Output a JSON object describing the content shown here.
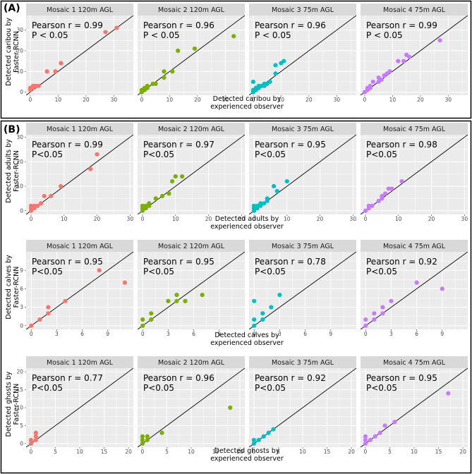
{
  "colors": {
    "panel_bg": "#ebebeb",
    "strip_bg": "#d9d9d9",
    "grid": "#ffffff",
    "mosaic1": "#f8766d",
    "mosaic2": "#7cae00",
    "mosaic3": "#00bfc4",
    "mosaic4": "#c77cff",
    "line": "#000000"
  },
  "part_labels": [
    "(A)",
    "(B)"
  ],
  "chart_data": [
    {
      "id": "caribou",
      "part": "(A)",
      "type": "scatter",
      "xlabel": [
        "Detected caribou by",
        "experienced observer"
      ],
      "ylabel": [
        "Detected caribou by",
        "Faster-RCNN"
      ],
      "xlim": [
        -1.5,
        37
      ],
      "ylim": [
        -1.5,
        37
      ],
      "xticks": [
        0,
        10,
        20,
        30
      ],
      "yticks": [
        0,
        10,
        20,
        30
      ],
      "panels": [
        {
          "title": "Mosaic 1 120m AGL",
          "annotation": "Pearson r = 0.99",
          "pvalue": "P < 0.05",
          "points": [
            [
              0,
              1
            ],
            [
              0,
              2
            ],
            [
              1,
              2
            ],
            [
              1,
              3
            ],
            [
              2,
              3
            ],
            [
              3,
              3
            ],
            [
              6,
              10
            ],
            [
              9,
              10
            ],
            [
              11,
              14
            ],
            [
              27,
              29
            ],
            [
              31,
              31
            ]
          ]
        },
        {
          "title": "Mosaic 2 120m AGL",
          "annotation": "Pearson r = 0.96",
          "pvalue": "P < 0.05",
          "points": [
            [
              0,
              0
            ],
            [
              0,
              1
            ],
            [
              1,
              1
            ],
            [
              1,
              2
            ],
            [
              2,
              2
            ],
            [
              2,
              3
            ],
            [
              4,
              4
            ],
            [
              5,
              4
            ],
            [
              8,
              7
            ],
            [
              8,
              10
            ],
            [
              11,
              10
            ],
            [
              13,
              20
            ],
            [
              19,
              21
            ],
            [
              33,
              27
            ]
          ]
        },
        {
          "title": "Mosaic 3 75m AGL",
          "annotation": "Pearson r = 0.96",
          "pvalue": "P < 0.05",
          "points": [
            [
              0,
              0
            ],
            [
              0,
              1
            ],
            [
              0,
              5
            ],
            [
              1,
              1
            ],
            [
              1,
              2
            ],
            [
              2,
              2
            ],
            [
              2,
              3
            ],
            [
              3,
              3
            ],
            [
              4,
              3
            ],
            [
              4,
              4
            ],
            [
              5,
              4
            ],
            [
              6,
              5
            ],
            [
              8,
              9
            ],
            [
              8,
              13
            ],
            [
              10,
              14
            ],
            [
              11,
              15
            ]
          ]
        },
        {
          "title": "Mosaic 4 75m AGL",
          "annotation": "Pearson r = 0.99",
          "pvalue": "P < 0.05",
          "points": [
            [
              0,
              0
            ],
            [
              1,
              1
            ],
            [
              1,
              2
            ],
            [
              2,
              2
            ],
            [
              2,
              3
            ],
            [
              3,
              5
            ],
            [
              5,
              5
            ],
            [
              5,
              7
            ],
            [
              6,
              6
            ],
            [
              7,
              8
            ],
            [
              8,
              9
            ],
            [
              9,
              10
            ],
            [
              12,
              15
            ],
            [
              14,
              15
            ],
            [
              15,
              18
            ],
            [
              16,
              17
            ],
            [
              27,
              25
            ]
          ]
        }
      ]
    },
    {
      "id": "adults",
      "part": "(B)",
      "type": "scatter",
      "xlabel": [
        "Detected adults by",
        "experienced observer"
      ],
      "ylabel": [
        "Detected adults by",
        "Faster-RCNN"
      ],
      "xlim": [
        -1.5,
        31
      ],
      "ylim": [
        -1.5,
        31
      ],
      "xticks": [
        0,
        10,
        20,
        30
      ],
      "yticks": [
        0,
        10,
        20,
        30
      ],
      "panels": [
        {
          "title": "Mosaic 1 120m AGL",
          "annotation": "Pearson r = 0.99",
          "pvalue": "P<0.05",
          "points": [
            [
              0,
              0
            ],
            [
              0,
              1
            ],
            [
              0,
              2
            ],
            [
              1,
              1
            ],
            [
              1,
              2
            ],
            [
              2,
              2
            ],
            [
              3,
              3
            ],
            [
              4,
              6
            ],
            [
              6,
              6
            ],
            [
              9,
              10
            ],
            [
              18,
              17
            ],
            [
              20,
              23
            ]
          ]
        },
        {
          "title": "Mosaic 2 120m AGL",
          "annotation": "Pearson r = 0.97",
          "pvalue": "P<0.05",
          "points": [
            [
              0,
              0
            ],
            [
              0,
              1
            ],
            [
              0,
              2
            ],
            [
              1,
              1
            ],
            [
              1,
              2
            ],
            [
              2,
              2
            ],
            [
              2,
              3
            ],
            [
              4,
              5
            ],
            [
              6,
              6
            ],
            [
              8,
              7
            ],
            [
              9,
              12
            ],
            [
              10,
              14
            ],
            [
              12,
              14
            ]
          ]
        },
        {
          "title": "Mosaic 3 75m AGL",
          "annotation": "Pearson r = 0.95",
          "pvalue": "P<0.05",
          "points": [
            [
              0,
              0
            ],
            [
              0,
              1
            ],
            [
              0,
              2
            ],
            [
              1,
              1
            ],
            [
              1,
              2
            ],
            [
              2,
              2
            ],
            [
              2,
              3
            ],
            [
              3,
              3
            ],
            [
              4,
              4
            ],
            [
              4,
              5
            ],
            [
              6,
              10
            ],
            [
              7,
              8
            ],
            [
              10,
              12
            ]
          ]
        },
        {
          "title": "Mosaic 4 75m AGL",
          "annotation": "Pearson r = 0.98",
          "pvalue": "P<0.05",
          "points": [
            [
              0,
              0
            ],
            [
              1,
              1
            ],
            [
              1,
              2
            ],
            [
              2,
              2
            ],
            [
              4,
              4
            ],
            [
              5,
              5
            ],
            [
              5,
              6
            ],
            [
              6,
              7
            ],
            [
              7,
              9
            ],
            [
              8,
              9
            ],
            [
              11,
              12
            ]
          ]
        }
      ]
    },
    {
      "id": "calves",
      "part": "(B)",
      "type": "scatter",
      "xlabel": [
        "Detected calves by",
        "experienced observer"
      ],
      "ylabel": [
        "Detected calves by",
        "Faster-RCNN"
      ],
      "xlim": [
        -0.6,
        12
      ],
      "ylim": [
        -0.6,
        12
      ],
      "xticks": [
        0,
        3,
        6,
        9
      ],
      "yticks": [
        0,
        3,
        6,
        9
      ],
      "panels": [
        {
          "title": "Mosaic 1 120m AGL",
          "annotation": "Pearson r = 0.95",
          "pvalue": "P<0.05",
          "points": [
            [
              0,
              0
            ],
            [
              1,
              1
            ],
            [
              2,
              2
            ],
            [
              2,
              3
            ],
            [
              4,
              4
            ],
            [
              8,
              9
            ],
            [
              11,
              7
            ]
          ]
        },
        {
          "title": "Mosaic 2 120m AGL",
          "annotation": "Pearson r = 0.95",
          "pvalue": "P<0.05",
          "points": [
            [
              0,
              0
            ],
            [
              0,
              1
            ],
            [
              1,
              1
            ],
            [
              1,
              2
            ],
            [
              3,
              4
            ],
            [
              4,
              4
            ],
            [
              4,
              5
            ],
            [
              5,
              4
            ],
            [
              7,
              5
            ]
          ]
        },
        {
          "title": "Mosaic 3 75m AGL",
          "annotation": "Pearson r = 0.78",
          "pvalue": "P<0.05",
          "points": [
            [
              0,
              0
            ],
            [
              0,
              1
            ],
            [
              0,
              4
            ],
            [
              1,
              1
            ],
            [
              1,
              2
            ],
            [
              2,
              3
            ],
            [
              3,
              5
            ]
          ]
        },
        {
          "title": "Mosaic 4 75m AGL",
          "annotation": "Pearson r = 0.92",
          "pvalue": "P<0.05",
          "points": [
            [
              0,
              0
            ],
            [
              0,
              1
            ],
            [
              1,
              1
            ],
            [
              1,
              2
            ],
            [
              2,
              2
            ],
            [
              2,
              3
            ],
            [
              3,
              4
            ],
            [
              6,
              7
            ],
            [
              9,
              6
            ]
          ]
        }
      ]
    },
    {
      "id": "ghosts",
      "part": "(B)",
      "type": "scatter",
      "xlabel": [
        "Detected ghosts by",
        "experienced observer"
      ],
      "ylabel": [
        "Detected ghosts by",
        "Faster-RCNN"
      ],
      "xlim": [
        -1,
        21
      ],
      "ylim": [
        -1,
        21
      ],
      "xticks": [
        0,
        5,
        10,
        15,
        20
      ],
      "yticks": [
        0,
        5,
        10,
        15,
        20
      ],
      "panels": [
        {
          "title": "Mosaic 1 120m AGL",
          "annotation": "Pearson r = 0.77",
          "pvalue": "P<0.05",
          "points": [
            [
              0,
              0
            ],
            [
              0,
              1
            ],
            [
              1,
              1
            ],
            [
              1,
              2
            ],
            [
              1,
              3
            ]
          ]
        },
        {
          "title": "Mosaic 2 120m AGL",
          "annotation": "Pearson r = 0.96",
          "pvalue": "P<0.05",
          "points": [
            [
              0,
              0
            ],
            [
              0,
              1
            ],
            [
              0,
              2
            ],
            [
              1,
              1
            ],
            [
              1,
              2
            ],
            [
              4,
              3
            ],
            [
              18,
              10
            ]
          ]
        },
        {
          "title": "Mosaic 3 75m AGL",
          "annotation": "Pearson r = 0.92",
          "pvalue": "P<0.05",
          "points": [
            [
              0,
              0
            ],
            [
              0,
              1
            ],
            [
              1,
              1
            ],
            [
              2,
              2
            ],
            [
              3,
              3
            ],
            [
              4,
              4
            ]
          ]
        },
        {
          "title": "Mosaic 4 75m AGL",
          "annotation": "Pearson r = 0.95",
          "pvalue": "P<0.05",
          "points": [
            [
              0,
              0
            ],
            [
              0,
              1
            ],
            [
              0,
              2
            ],
            [
              1,
              1
            ],
            [
              2,
              2
            ],
            [
              3,
              3
            ],
            [
              4,
              5
            ],
            [
              6,
              6
            ],
            [
              17,
              14
            ]
          ]
        }
      ]
    }
  ]
}
